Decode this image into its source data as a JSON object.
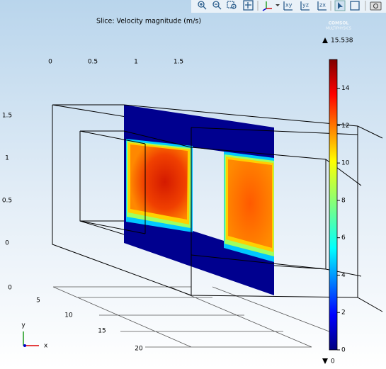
{
  "toolbar": {
    "view_buttons": [
      "xy",
      "yz",
      "zx"
    ]
  },
  "plot": {
    "title": "Slice: Velocity magnitude (m/s)",
    "logo": [
      "COMSOL",
      "MULTIPHYSICS"
    ],
    "x_axis_labels": [
      0,
      0.5,
      1,
      1.5
    ],
    "z_axis_labels": [
      1.5,
      1,
      0.5,
      0,
      0
    ],
    "y_axis_labels": [
      5,
      10,
      15,
      20
    ],
    "triad": {
      "y": "y",
      "x": "x"
    }
  },
  "colorbar": {
    "max": 15.538,
    "min": 0,
    "ticks": [
      0,
      2,
      4,
      6,
      8,
      10,
      12,
      14
    ]
  }
}
